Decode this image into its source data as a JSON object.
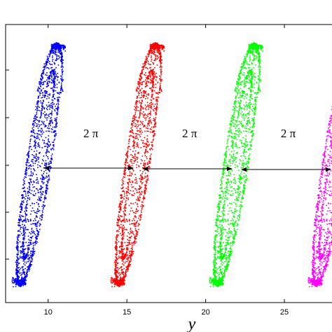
{
  "chart_data": {
    "type": "scatter",
    "title": "",
    "xlabel": "y",
    "ylabel": "",
    "xlim": [
      7.3,
      28.2
    ],
    "x_ticks": [
      10,
      15,
      20,
      25
    ],
    "grid": false,
    "legend": "none",
    "annotations": [
      {
        "text": "2 π",
        "between": [
          0,
          1
        ]
      },
      {
        "text": "2 π",
        "between": [
          1,
          2
        ]
      },
      {
        "text": "2 π",
        "between": [
          2,
          3
        ]
      }
    ],
    "series": [
      {
        "color": "#0000ff",
        "x_center": 9.4
      },
      {
        "color": "#ff0000",
        "x_center": 15.67
      },
      {
        "color": "#00ff00",
        "x_center": 21.93
      },
      {
        "color": "#ff00ff",
        "x_center": 28.2
      }
    ]
  }
}
